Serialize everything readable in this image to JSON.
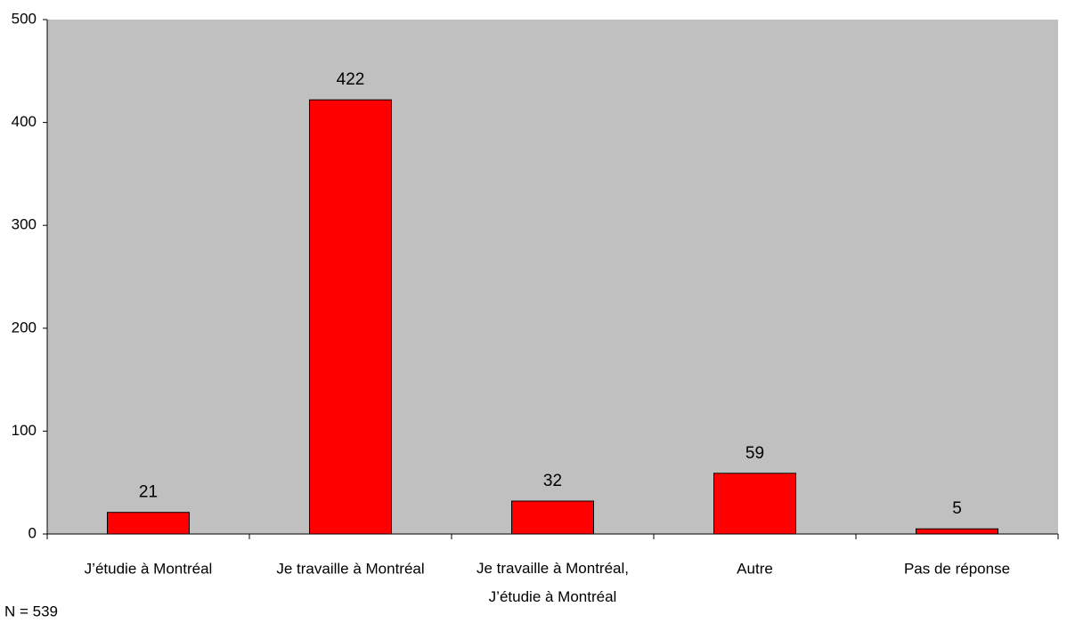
{
  "chart_data": {
    "type": "bar",
    "categories": [
      "J’étudie à Montréal",
      "Je travaille à Montréal",
      "Je travaille à Montréal,\nJ’étudie à Montréal",
      "Autre",
      "Pas de réponse"
    ],
    "values": [
      21,
      422,
      32,
      59,
      5
    ],
    "color": "#ff0000",
    "plot_background": "#c0c0c0",
    "ylim": [
      0,
      500
    ],
    "yticks": [
      0,
      100,
      200,
      300,
      400,
      500
    ],
    "note": "N = 539"
  }
}
